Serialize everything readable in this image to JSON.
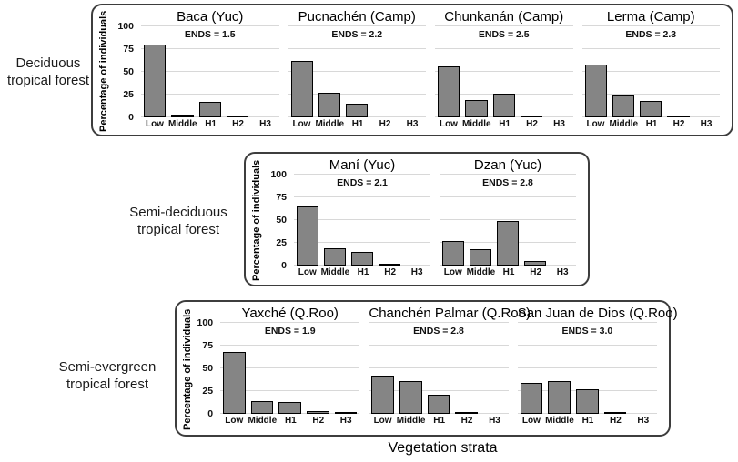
{
  "figure": {
    "xlabel": "Vegetation strata",
    "ylabel": "Percentage of individuals"
  },
  "chart_data": {
    "type": "bar",
    "categories": [
      "Low",
      "Middle",
      "H1",
      "H2",
      "H3"
    ],
    "xlabel": "Vegetation strata",
    "ylabel": "Percentage of individuals",
    "ylim": [
      0,
      100
    ],
    "yticks": [
      0,
      25,
      50,
      75,
      100
    ],
    "grid": "horizontal-light",
    "bar_color": "#858585",
    "bar_border_color": "#000000",
    "groups": [
      {
        "label": "Deciduous tropical forest",
        "label_lines": [
          "Deciduous",
          "tropical forest"
        ],
        "panels": [
          {
            "title": "Baca (Yuc)",
            "ends": "ENDS = 1.5",
            "values": [
              80,
              3,
              17,
              1,
              0
            ]
          },
          {
            "title": "Pucnachén (Camp)",
            "ends": "ENDS = 2.2",
            "values": [
              62,
              27,
              15,
              0,
              0
            ]
          },
          {
            "title": "Chunkanán (Camp)",
            "ends": "ENDS = 2.5",
            "values": [
              56,
              19,
              26,
              2,
              0
            ]
          },
          {
            "title": "Lerma (Camp)",
            "ends": "ENDS = 2.3",
            "values": [
              58,
              24,
              18,
              2,
              0
            ]
          }
        ]
      },
      {
        "label": "Semi-deciduous tropical forest",
        "label_lines": [
          "Semi-deciduous",
          "tropical forest"
        ],
        "panels": [
          {
            "title": "Maní (Yuc)",
            "ends": "ENDS = 2.1",
            "values": [
              65,
              19,
              15,
              1,
              0
            ]
          },
          {
            "title": "Dzan (Yuc)",
            "ends": "ENDS = 2.8",
            "values": [
              27,
              18,
              49,
              5,
              0
            ]
          }
        ]
      },
      {
        "label": "Semi-evergreen tropical forest",
        "label_lines": [
          "Semi-evergreen",
          "tropical forest"
        ],
        "panels": [
          {
            "title": "Yaxché (Q.Roo)",
            "ends": "ENDS = 1.9",
            "values": [
              68,
              14,
              13,
              3,
              1
            ]
          },
          {
            "title": "Chanchén Palmar (Q.Roo)",
            "ends": "ENDS = 2.8",
            "values": [
              42,
              36,
              21,
              1,
              0
            ]
          },
          {
            "title": "San Juan de Dios (Q.Roo)",
            "ends": "ENDS = 3.0",
            "values": [
              34,
              36,
              27,
              2,
              0
            ]
          }
        ]
      }
    ]
  }
}
